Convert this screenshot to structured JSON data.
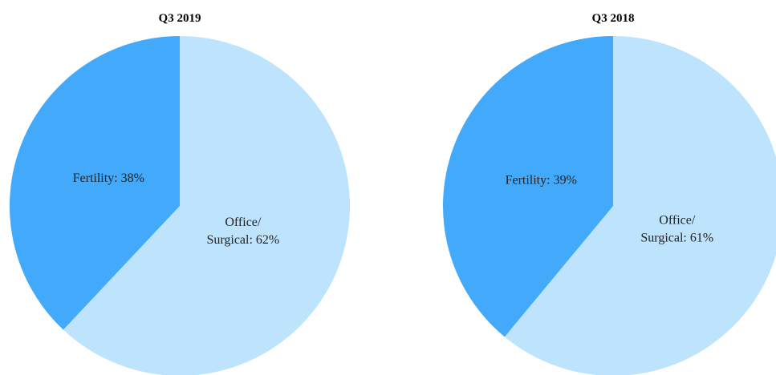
{
  "chart_data": [
    {
      "type": "pie",
      "title": "Q3 2019",
      "values": [
        62,
        38
      ],
      "value_labels": [
        "Office/\nSurgical: 62%",
        "Fertility: 38%"
      ],
      "colors": [
        "#bde3fd",
        "#42a9fb"
      ]
    },
    {
      "type": "pie",
      "title": "Q3 2018",
      "values": [
        61,
        39
      ],
      "value_labels": [
        "Office/\nSurgical: 61%",
        "Fertility: 39%"
      ],
      "colors": [
        "#bde3fd",
        "#42a9fb"
      ]
    }
  ]
}
